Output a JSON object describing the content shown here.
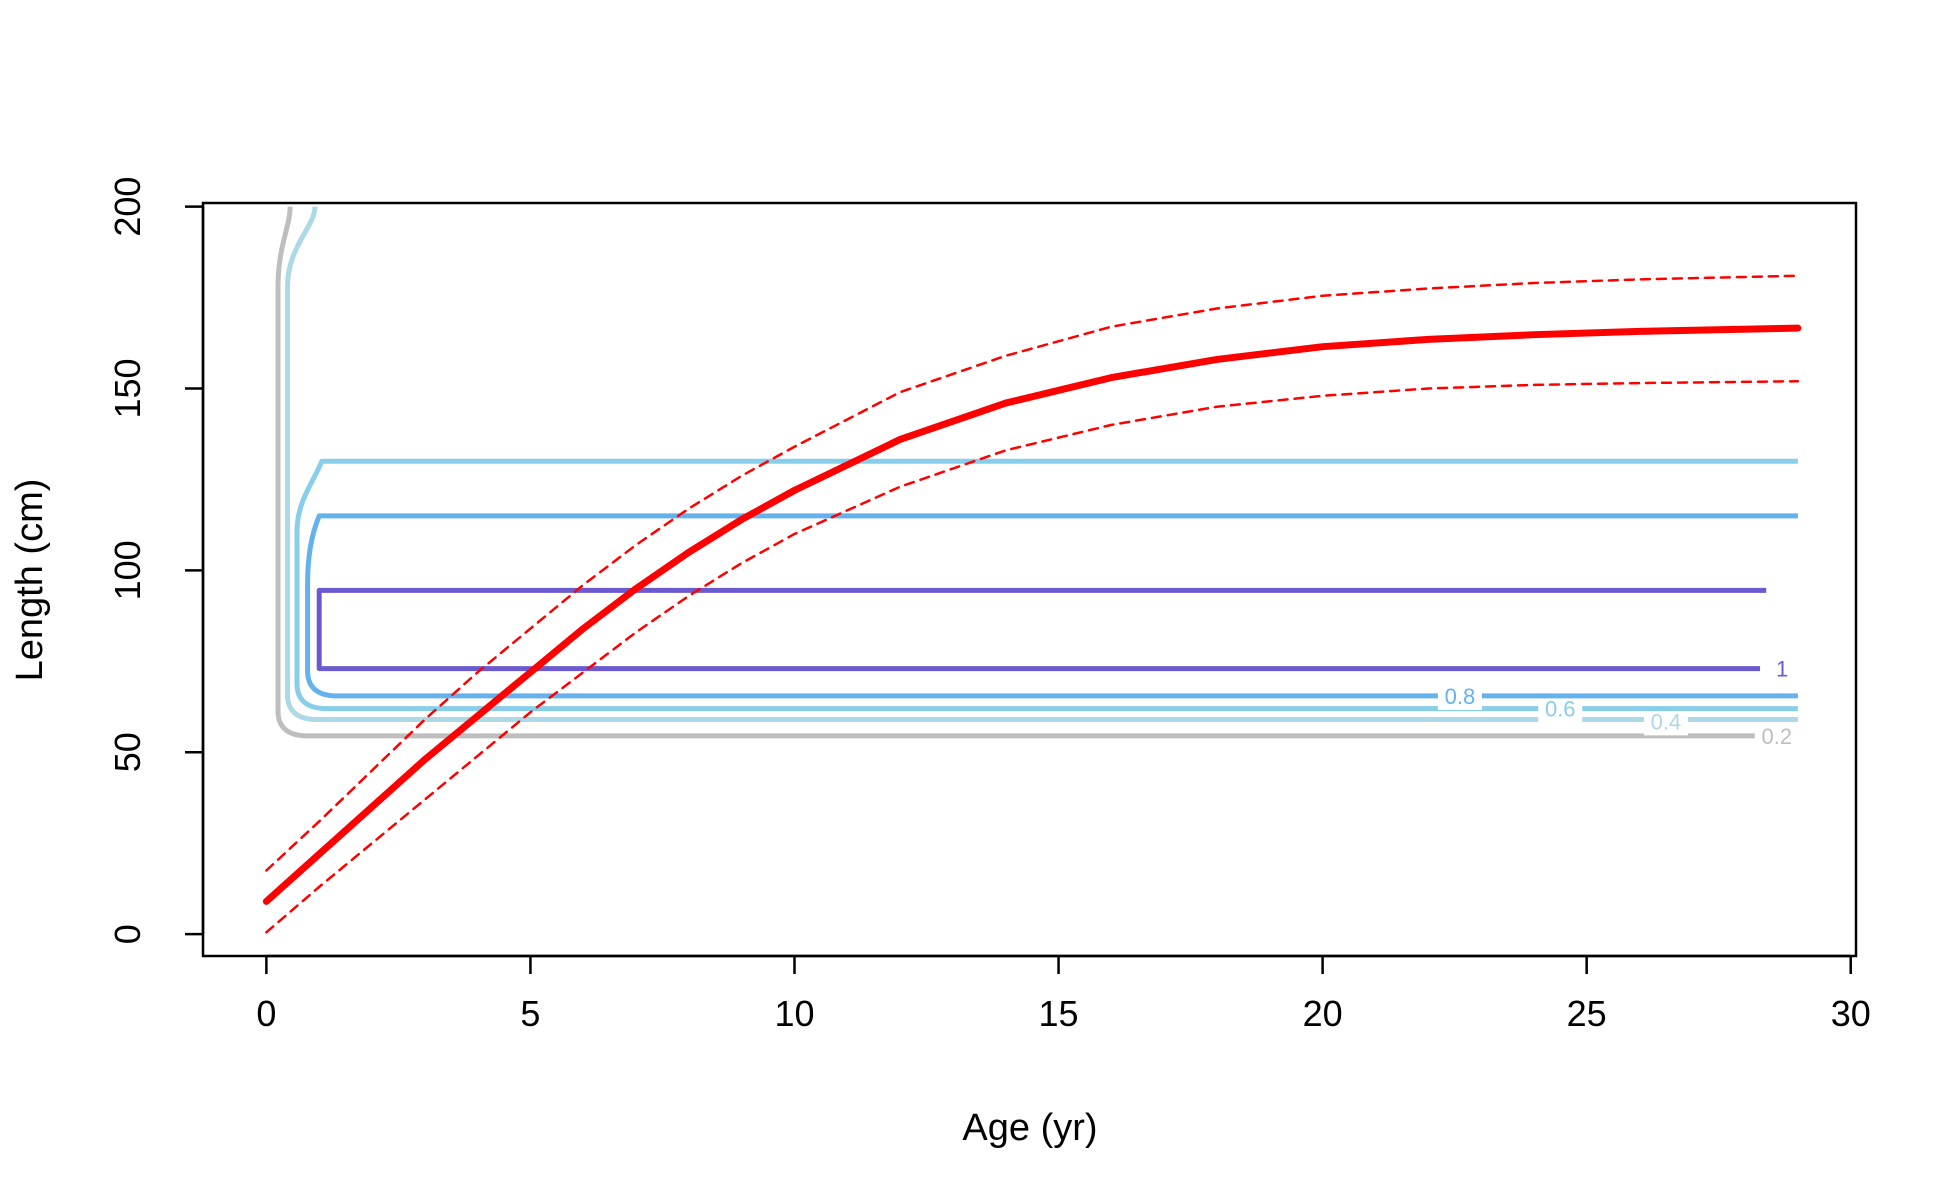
{
  "chart_data": {
    "type": "line",
    "title": "",
    "xlabel": "Age (yr)",
    "ylabel": "Length (cm)",
    "xlim": [
      -1.2,
      30.1
    ],
    "ylim": [
      -6,
      201
    ],
    "xticks": [
      0,
      5,
      10,
      15,
      20,
      25,
      30
    ],
    "yticks": [
      0,
      50,
      100,
      150,
      200
    ],
    "grid": false,
    "legend": "none",
    "series": [
      {
        "role": "mean-growth",
        "color": "#ff0000",
        "style": "solid-thick",
        "x": [
          0,
          1,
          2,
          3,
          4,
          5,
          6,
          7,
          8,
          9,
          10,
          12,
          14,
          16,
          18,
          20,
          22,
          24,
          26,
          29
        ],
        "y": [
          9,
          22,
          35,
          48,
          60,
          72,
          84,
          95,
          105,
          114,
          122,
          136,
          146,
          153,
          158,
          161.5,
          163.5,
          164.8,
          165.7,
          166.6
        ]
      },
      {
        "role": "upper-bound",
        "color": "#ff0000",
        "style": "dashed",
        "x": [
          0,
          1,
          2,
          3,
          4,
          5,
          6,
          7,
          8,
          9,
          10,
          12,
          14,
          16,
          18,
          20,
          22,
          24,
          26,
          29
        ],
        "y": [
          17.5,
          31,
          45,
          59,
          72,
          84,
          96,
          107,
          117,
          126,
          134,
          149,
          159,
          167,
          172,
          175.5,
          177.5,
          179,
          180,
          181
        ]
      },
      {
        "role": "lower-bound",
        "color": "#ff0000",
        "style": "dashed",
        "x": [
          0,
          1,
          2,
          3,
          4,
          5,
          6,
          7,
          8,
          9,
          10,
          12,
          14,
          16,
          18,
          20,
          22,
          24,
          26,
          29
        ],
        "y": [
          0.5,
          13,
          25,
          37,
          49,
          61,
          72,
          83,
          93,
          102,
          110,
          123,
          133,
          140,
          145,
          148,
          150,
          151,
          151.5,
          152
        ]
      }
    ],
    "contours": [
      {
        "level": "0.2",
        "color": "#bebebe",
        "label": "0.2",
        "x_left": 0.45,
        "x_vert": 0.22,
        "y_bottom": 54.5,
        "y_top": 200,
        "x_right": 29,
        "label_x": 28.6,
        "label_y": 54.5
      },
      {
        "level": "0.4",
        "color": "#add8e6",
        "label": "0.4",
        "x_left": 0.92,
        "x_vert": 0.4,
        "y_bottom": 59,
        "y_top": 200,
        "x_right": 29,
        "label_x": 26.5,
        "label_y": 58.5
      },
      {
        "level": "0.6",
        "color": "#87ceeb",
        "label": "0.6",
        "x_left": 1.05,
        "x_vert": 0.58,
        "y_bottom": 62,
        "y_top": 130,
        "x_right": 29,
        "label_x": 24.5,
        "label_y": 62
      },
      {
        "level": "0.8",
        "color": "#63b2ee",
        "label": "0.8",
        "x_left": 1.0,
        "x_vert": 0.78,
        "y_bottom": 65.5,
        "y_top": 115,
        "x_right": 29,
        "label_x": 22.6,
        "label_y": 65.5
      },
      {
        "level": "1",
        "color": "#6a5acd",
        "label": "1",
        "x_left": 1.0,
        "x_vert": 1.0,
        "y_bottom": 73,
        "y_top": 94.5,
        "x_right": 28.4,
        "label_x": 28.7,
        "label_y": 73
      }
    ]
  }
}
